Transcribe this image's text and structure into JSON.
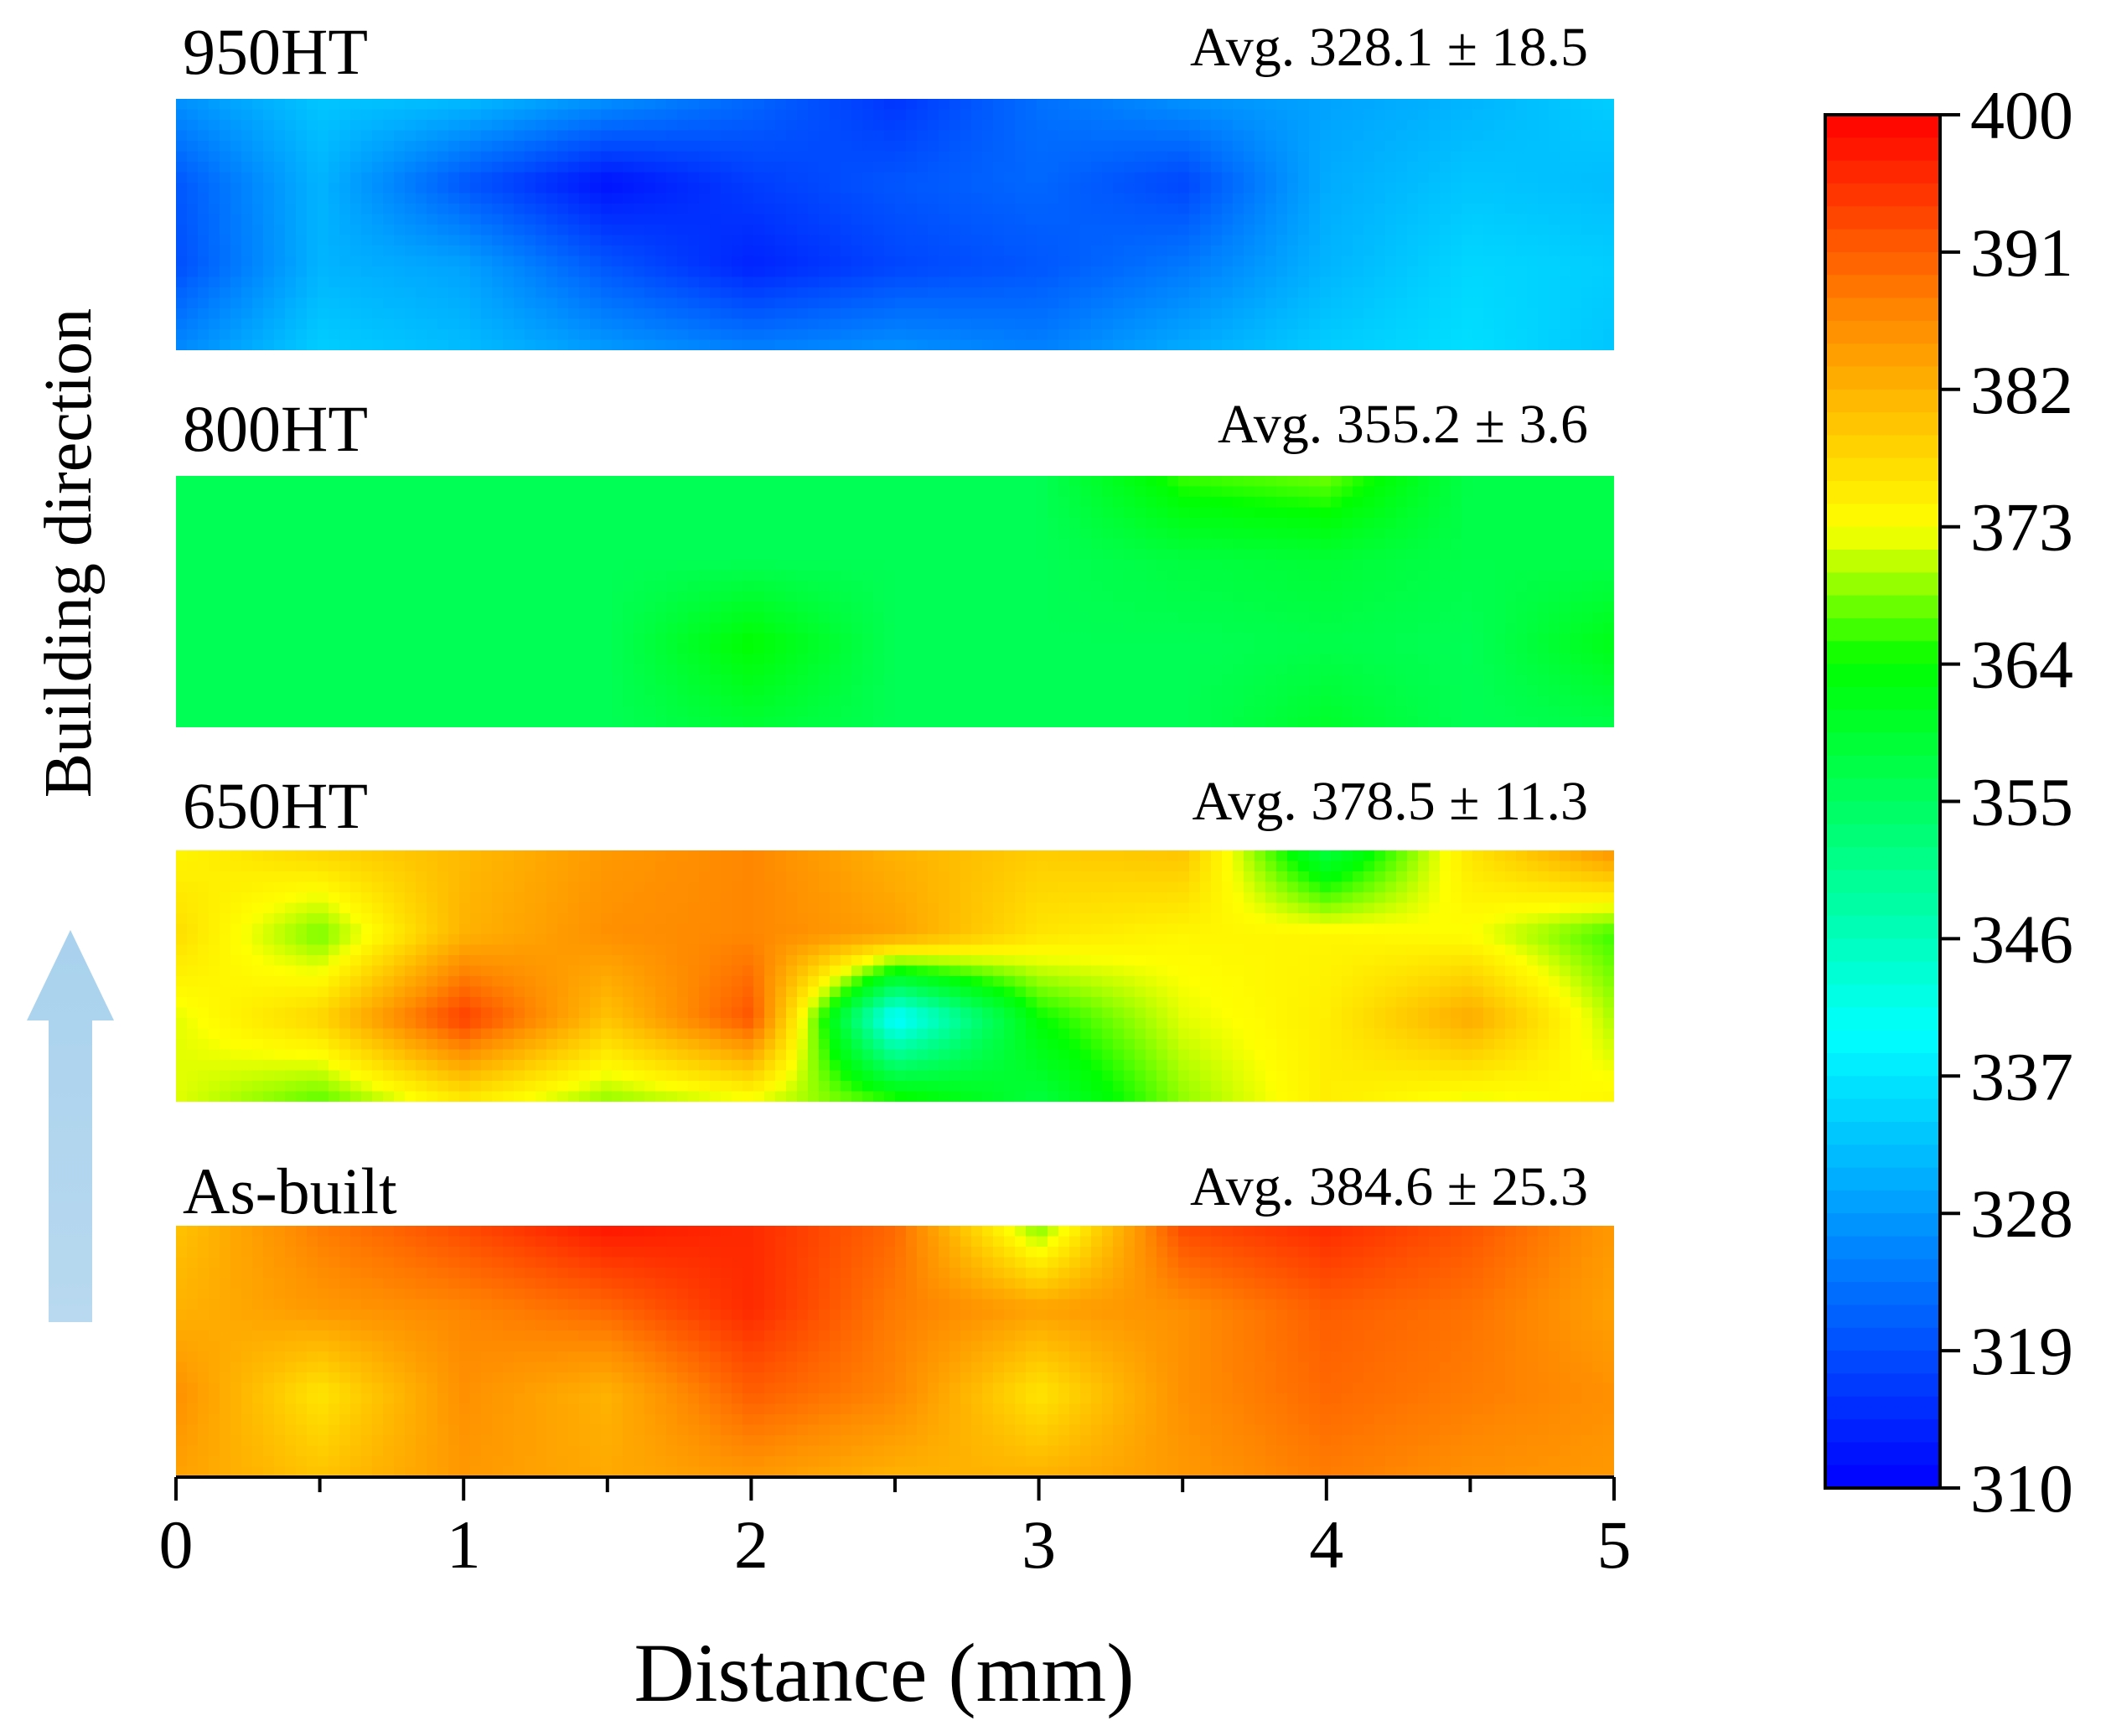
{
  "chart_data": {
    "type": "heatmap",
    "xlabel": "Distance (mm)",
    "ylabel": "Building direction",
    "x_ticks": [
      "0",
      "1",
      "2",
      "3",
      "4",
      "5"
    ],
    "xlim": [
      0,
      5
    ],
    "colorbar": {
      "min": 310,
      "max": 400,
      "ticks": [
        "400",
        "391",
        "382",
        "373",
        "364",
        "355",
        "346",
        "337",
        "328",
        "319",
        "310"
      ]
    },
    "panels": [
      {
        "name": "950HT",
        "avg_label": "Avg. 328.1 ± 18.5",
        "grid": [
          [
            327,
            333,
            332,
            327,
            322,
            316,
            323,
            327,
            329,
            331,
            334
          ],
          [
            320,
            331,
            320,
            312,
            317,
            320,
            322,
            318,
            330,
            333,
            332
          ],
          [
            319,
            331,
            329,
            320,
            314,
            318,
            320,
            324,
            331,
            335,
            334
          ],
          [
            326,
            334,
            332,
            328,
            325,
            327,
            325,
            330,
            334,
            336,
            333
          ]
        ]
      },
      {
        "name": "800HT",
        "avg_label": "Avg. 355.2 ± 3.6",
        "grid": [
          [
            356,
            356,
            356,
            356,
            356,
            356,
            356,
            366,
            368,
            357,
            357
          ],
          [
            356,
            356,
            356,
            356,
            356,
            356,
            356,
            358,
            359,
            357,
            357
          ],
          [
            356,
            356,
            356,
            356,
            364,
            356,
            356,
            356,
            357,
            356,
            362
          ],
          [
            356,
            356,
            356,
            356,
            359,
            356,
            356,
            356,
            360,
            356,
            357
          ]
        ]
      },
      {
        "name": "650HT",
        "avg_label": "Avg. 378.5 ± 11.3",
        "grid": [
          [
            374,
            378,
            381,
            385,
            387,
            382,
            379,
            380,
            358,
            376,
            386
          ],
          [
            377,
            368,
            382,
            386,
            387,
            384,
            376,
            374,
            374,
            373,
            366
          ],
          [
            372,
            378,
            394,
            380,
            392,
            338,
            364,
            372,
            375,
            383,
            370
          ],
          [
            372,
            367,
            375,
            369,
            372,
            366,
            358,
            369,
            375,
            372,
            374
          ]
        ]
      },
      {
        "name": "As-built",
        "avg_label": "Avg. 384.6 ± 25.3",
        "grid": [
          [
            380,
            388,
            393,
            398,
            396,
            390,
            368,
            393,
            396,
            392,
            385
          ],
          [
            382,
            385,
            387,
            390,
            396,
            388,
            384,
            386,
            391,
            389,
            384
          ],
          [
            386,
            376,
            386,
            382,
            391,
            387,
            376,
            386,
            390,
            388,
            386
          ],
          [
            384,
            380,
            385,
            383,
            385,
            382,
            382,
            385,
            388,
            386,
            385
          ]
        ]
      }
    ]
  }
}
